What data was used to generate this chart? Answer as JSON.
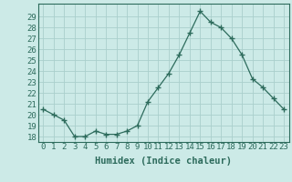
{
  "x": [
    0,
    1,
    2,
    3,
    4,
    5,
    6,
    7,
    8,
    9,
    10,
    11,
    12,
    13,
    14,
    15,
    16,
    17,
    18,
    19,
    20,
    21,
    22,
    23
  ],
  "y": [
    20.5,
    20.0,
    19.5,
    18.0,
    18.0,
    18.5,
    18.2,
    18.2,
    18.5,
    19.0,
    21.2,
    22.5,
    23.8,
    25.5,
    27.5,
    29.5,
    28.5,
    28.0,
    27.0,
    25.5,
    23.3,
    22.5,
    21.5,
    20.5
  ],
  "line_color": "#2d6b5c",
  "marker": "+",
  "marker_size": 4,
  "marker_linewidth": 1.0,
  "line_width": 0.9,
  "bg_color": "#cceae7",
  "grid_color": "#aacfcc",
  "xlabel": "Humidex (Indice chaleur)",
  "ylim": [
    17.5,
    30.2
  ],
  "xlim": [
    -0.5,
    23.5
  ],
  "yticks": [
    18,
    19,
    20,
    21,
    22,
    23,
    24,
    25,
    26,
    27,
    28,
    29
  ],
  "xticks": [
    0,
    1,
    2,
    3,
    4,
    5,
    6,
    7,
    8,
    9,
    10,
    11,
    12,
    13,
    14,
    15,
    16,
    17,
    18,
    19,
    20,
    21,
    22,
    23
  ],
  "xlabel_fontsize": 7.5,
  "tick_fontsize": 6.5,
  "fig_width": 3.2,
  "fig_height": 2.0,
  "dpi": 100
}
